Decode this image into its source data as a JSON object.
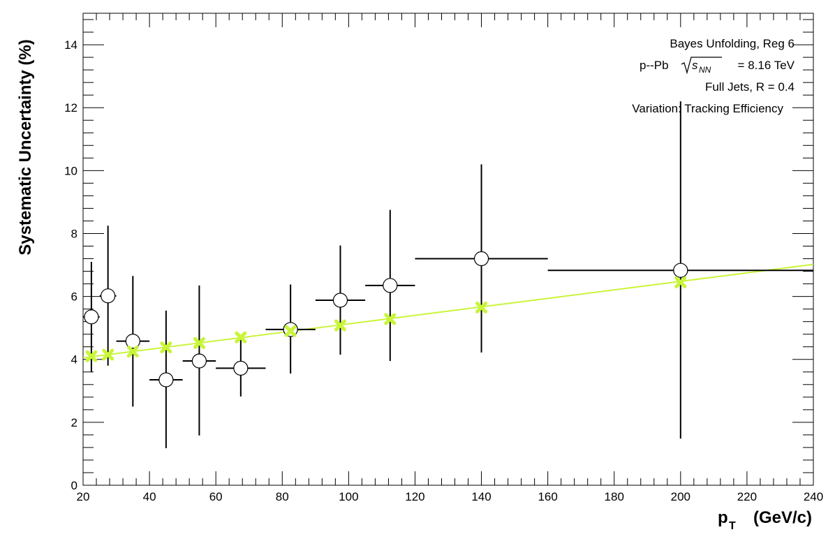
{
  "chart_data": {
    "type": "scatter",
    "title": "",
    "xlabel_main": "p",
    "xlabel_sub": "T",
    "xlabel_unit": "(GeV/c)",
    "ylabel": "Systematic Uncertainty (%)",
    "xlim": [
      20,
      240
    ],
    "ylim": [
      0,
      15
    ],
    "x_ticks": [
      20,
      40,
      60,
      80,
      100,
      120,
      140,
      160,
      180,
      200,
      220,
      240
    ],
    "y_ticks": [
      0,
      2,
      4,
      6,
      8,
      10,
      12,
      14
    ],
    "annotations": {
      "line1": "Bayes Unfolding, Reg 6",
      "line2_prefix": "p--Pb",
      "line2_s": "s",
      "line2_sub": "NN",
      "line2_suffix": "= 8.16 TeV",
      "line3": "Full Jets, R = 0.4",
      "line4": "Variation: Tracking Efficiency"
    },
    "series": [
      {
        "marker": "open-circle",
        "color": "#000000",
        "points": [
          {
            "x": 22.5,
            "y": 5.35,
            "xerr": 2.5,
            "ylow": 3.6,
            "yhigh": 7.1
          },
          {
            "x": 27.5,
            "y": 6.02,
            "xerr": 2.5,
            "ylow": 3.8,
            "yhigh": 8.25
          },
          {
            "x": 35,
            "y": 4.58,
            "xerr": 5,
            "ylow": 2.5,
            "yhigh": 6.65
          },
          {
            "x": 45,
            "y": 3.35,
            "xerr": 5,
            "ylow": 1.18,
            "yhigh": 5.55
          },
          {
            "x": 55,
            "y": 3.95,
            "xerr": 5,
            "ylow": 1.58,
            "yhigh": 6.35
          },
          {
            "x": 67.5,
            "y": 3.72,
            "xerr": 7.5,
            "ylow": 2.82,
            "yhigh": 4.62
          },
          {
            "x": 82.5,
            "y": 4.95,
            "xerr": 7.5,
            "ylow": 3.55,
            "yhigh": 6.38
          },
          {
            "x": 97.5,
            "y": 5.88,
            "xerr": 7.5,
            "ylow": 4.15,
            "yhigh": 7.62
          },
          {
            "x": 112.5,
            "y": 6.35,
            "xerr": 7.5,
            "ylow": 3.95,
            "yhigh": 8.75
          },
          {
            "x": 140,
            "y": 7.2,
            "xerr": 20,
            "ylow": 4.22,
            "yhigh": 10.2
          },
          {
            "x": 200,
            "y": 6.83,
            "xerr": 40,
            "ylow": 1.48,
            "yhigh": 12.2
          }
        ]
      },
      {
        "marker": "cross",
        "color": "#c8f53a",
        "points": [
          {
            "x": 22.5,
            "y": 4.1
          },
          {
            "x": 27.5,
            "y": 4.15
          },
          {
            "x": 35,
            "y": 4.25
          },
          {
            "x": 45,
            "y": 4.38
          },
          {
            "x": 55,
            "y": 4.52
          },
          {
            "x": 67.5,
            "y": 4.7
          },
          {
            "x": 82.5,
            "y": 4.9
          },
          {
            "x": 97.5,
            "y": 5.08
          },
          {
            "x": 112.5,
            "y": 5.28
          },
          {
            "x": 140,
            "y": 5.65
          },
          {
            "x": 200,
            "y": 6.45
          }
        ]
      }
    ],
    "fit_line": {
      "color": "#c8f53a",
      "x": [
        20,
        240
      ],
      "y": [
        4.05,
        7.02
      ]
    }
  }
}
